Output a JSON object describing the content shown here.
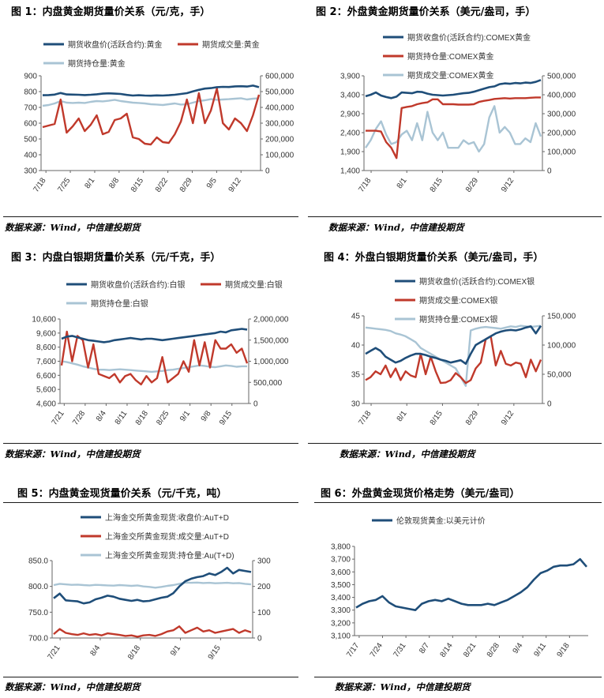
{
  "source_text": "数据来源：Wind，中信建投期货",
  "colors": {
    "price": "#1f4e79",
    "volume": "#c0392b",
    "oi": "#a9c4d4",
    "axis": "#666666"
  },
  "chart_data": [
    {
      "id": "c1",
      "type": "line",
      "title": "图 1：内盘黄金期货量价关系（元/克，手）",
      "x_ticks": [
        "7/18",
        "7/25",
        "8/1",
        "8/8",
        "8/15",
        "8/22",
        "8/29",
        "9/5",
        "9/12"
      ],
      "ylim_left": [
        300,
        900
      ],
      "yticks_left": [
        300,
        400,
        500,
        600,
        700,
        800,
        900
      ],
      "ylim_right": [
        0,
        600000
      ],
      "yticks_right": [
        0,
        100000,
        200000,
        300000,
        400000,
        500000,
        600000
      ],
      "series": [
        {
          "name": "期货收盘价(活跃合约):黄金",
          "axis": "left",
          "color": "#1f4e79",
          "values": [
            777,
            778,
            781,
            791,
            782,
            781,
            780,
            778,
            780,
            783,
            787,
            789,
            787,
            785,
            779,
            775,
            777,
            775,
            774,
            776,
            775,
            777,
            780,
            785,
            790,
            801,
            811,
            819,
            822,
            828,
            830,
            829,
            833,
            834,
            832,
            838,
            828
          ]
        },
        {
          "name": "期货成交量:黄金",
          "axis": "right",
          "color": "#c0392b",
          "values": [
            275000,
            285000,
            295000,
            450000,
            240000,
            280000,
            330000,
            250000,
            290000,
            350000,
            230000,
            245000,
            320000,
            330000,
            360000,
            210000,
            200000,
            170000,
            165000,
            210000,
            180000,
            175000,
            230000,
            310000,
            450000,
            300000,
            490000,
            300000,
            380000,
            520000,
            300000,
            260000,
            330000,
            300000,
            250000,
            350000,
            480000
          ]
        },
        {
          "name": "期货持仓量:黄金",
          "axis": "right",
          "color": "#a9c4d4",
          "values": [
            410000,
            415000,
            425000,
            440000,
            430000,
            428000,
            430000,
            428000,
            435000,
            440000,
            438000,
            442000,
            448000,
            440000,
            435000,
            430000,
            428000,
            425000,
            420000,
            418000,
            415000,
            420000,
            425000,
            418000,
            420000,
            430000,
            440000,
            445000,
            452000,
            448000,
            450000,
            452000,
            455000,
            458000,
            450000,
            455000,
            458000
          ]
        }
      ]
    },
    {
      "id": "c2",
      "type": "line",
      "title": "图 2：外盘黄金期货量价关系（美元/盎司，手）",
      "x_ticks": [
        "7/18",
        "8/1",
        "8/15",
        "8/29",
        "9/12"
      ],
      "ylim_left": [
        1400,
        3900
      ],
      "yticks_left": [
        1400,
        1900,
        2400,
        2900,
        3400,
        3900
      ],
      "ylim_right": [
        0,
        500000
      ],
      "yticks_right": [
        0,
        100000,
        200000,
        300000,
        400000,
        500000
      ],
      "series": [
        {
          "name": "期货收盘价(活跃合约):COMEX黄金",
          "axis": "left",
          "color": "#1f4e79",
          "values": [
            3360,
            3400,
            3460,
            3380,
            3340,
            3310,
            3350,
            3460,
            3450,
            3440,
            3480,
            3470,
            3430,
            3400,
            3390,
            3380,
            3390,
            3400,
            3420,
            3440,
            3450,
            3480,
            3520,
            3560,
            3600,
            3620,
            3680,
            3700,
            3690,
            3710,
            3700,
            3720,
            3710,
            3740,
            3790
          ]
        },
        {
          "name": "期货持仓量:COMEX黄金",
          "axis": "left",
          "color": "#c0392b",
          "values": [
            2450,
            2450,
            2450,
            2430,
            2150,
            2000,
            1730,
            3050,
            3080,
            3100,
            3150,
            3180,
            3200,
            3280,
            3280,
            3150,
            3150,
            3150,
            3140,
            3140,
            3140,
            3150,
            3210,
            3240,
            3260,
            3290,
            3300,
            3310,
            3300,
            3310,
            3310,
            3310,
            3320,
            3330,
            3330
          ]
        },
        {
          "name": "期货成交量:COMEX黄金",
          "axis": "right",
          "color": "#a9c4d4",
          "values": [
            120000,
            160000,
            220000,
            260000,
            190000,
            140000,
            150000,
            190000,
            210000,
            160000,
            250000,
            160000,
            310000,
            200000,
            160000,
            200000,
            120000,
            120000,
            120000,
            160000,
            140000,
            150000,
            100000,
            140000,
            280000,
            340000,
            200000,
            230000,
            200000,
            140000,
            140000,
            170000,
            150000,
            250000,
            180000
          ]
        }
      ]
    },
    {
      "id": "c3",
      "type": "line",
      "title": "图 3：内盘白银期货量价关系（元/千克，手）",
      "x_ticks": [
        "7/21",
        "7/28",
        "8/4",
        "8/11",
        "8/18",
        "8/25",
        "9/1",
        "9/8",
        "9/15"
      ],
      "ylim_left": [
        4600,
        10600
      ],
      "yticks_left": [
        4600,
        5600,
        6600,
        7600,
        8600,
        9600,
        10600
      ],
      "ylim_right": [
        0,
        2000000
      ],
      "yticks_right": [
        0,
        500000,
        1000000,
        1500000,
        2000000
      ],
      "series": [
        {
          "name": "期货收盘价(活跃合约):白银",
          "axis": "left",
          "color": "#1f4e79",
          "values": [
            9200,
            9350,
            9400,
            9300,
            9200,
            9100,
            9050,
            9000,
            8950,
            9000,
            9100,
            9150,
            9200,
            9250,
            9200,
            9150,
            9200,
            9200,
            9150,
            9100,
            9150,
            9200,
            9250,
            9300,
            9350,
            9400,
            9450,
            9500,
            9550,
            9600,
            9700,
            9650,
            9800,
            9850,
            9900,
            9850
          ]
        },
        {
          "name": "期货成交量:白银",
          "axis": "right",
          "color": "#c0392b",
          "values": [
            900000,
            1700000,
            1000000,
            1600000,
            1500000,
            850000,
            1400000,
            700000,
            650000,
            600000,
            700000,
            500000,
            650000,
            700000,
            550000,
            450000,
            650000,
            500000,
            600000,
            1100000,
            500000,
            600000,
            700000,
            1000000,
            750000,
            1500000,
            900000,
            1450000,
            850000,
            1500000,
            1300000,
            1300000,
            1400000,
            1200000,
            1300000,
            950000
          ]
        },
        {
          "name": "期货持仓量:白银",
          "axis": "right",
          "color": "#a9c4d4",
          "values": [
            1000000,
            980000,
            950000,
            920000,
            880000,
            850000,
            820000,
            800000,
            800000,
            790000,
            800000,
            810000,
            800000,
            790000,
            780000,
            770000,
            760000,
            750000,
            760000,
            770000,
            790000,
            800000,
            820000,
            840000,
            860000,
            880000,
            900000,
            890000,
            870000,
            860000,
            880000,
            900000,
            890000,
            870000,
            880000,
            880000
          ]
        }
      ]
    },
    {
      "id": "c4",
      "type": "line",
      "title": "图 4：外盘白银期货量价关系（美元/盎司，手）",
      "x_ticks": [
        "7/18",
        "8/1",
        "8/15",
        "8/29",
        "9/12"
      ],
      "ylim_left": [
        30,
        45
      ],
      "yticks_left": [
        30,
        35,
        40,
        45
      ],
      "ylim_right": [
        0,
        150000
      ],
      "yticks_right": [
        0,
        50000,
        100000,
        150000
      ],
      "series": [
        {
          "name": "期货收盘价(活跃合约):COMEX银",
          "axis": "left",
          "color": "#1f4e79",
          "values": [
            38.5,
            39,
            39.5,
            39,
            38,
            37.5,
            37,
            37.3,
            37.8,
            38.2,
            38.5,
            38.5,
            38.3,
            38.0,
            37.8,
            37.5,
            37.3,
            37.0,
            37.2,
            37.4,
            36.8,
            38.5,
            40.0,
            40.5,
            41.0,
            41.5,
            42.0,
            42.3,
            42.5,
            42.6,
            42.5,
            42.7,
            43.0,
            43.2,
            42.0,
            43.3
          ]
        },
        {
          "name": "期货成交量:COMEX银",
          "axis": "right",
          "color": "#c0392b",
          "values": [
            40000,
            45000,
            55000,
            50000,
            65000,
            45000,
            60000,
            40000,
            55000,
            48000,
            45000,
            85000,
            50000,
            80000,
            55000,
            35000,
            36000,
            40000,
            52000,
            45000,
            35000,
            40000,
            60000,
            70000,
            110000,
            115000,
            65000,
            90000,
            68000,
            65000,
            70000,
            68000,
            45000,
            75000,
            55000,
            75000
          ]
        },
        {
          "name": "期货持仓量:COMEX银",
          "axis": "right",
          "color": "#a9c4d4",
          "values": [
            130000,
            129000,
            128000,
            127000,
            126000,
            124000,
            120000,
            118000,
            115000,
            110000,
            105000,
            95000,
            90000,
            85000,
            80000,
            75000,
            70000,
            65000,
            60000,
            45000,
            30000,
            125000,
            128000,
            130000,
            131000,
            130000,
            129000,
            128000,
            130000,
            132000,
            131000,
            133000,
            132000,
            131000,
            132000,
            133000
          ]
        }
      ]
    },
    {
      "id": "c5",
      "type": "line",
      "title": "图 5：内盘黄金现货量价关系（元/千克，吨）",
      "x_ticks": [
        "7/21",
        "8/4",
        "8/18",
        "9/1",
        "9/15"
      ],
      "ylim_left": [
        700,
        850
      ],
      "yticks_left": [
        700.0,
        750.0,
        800.0,
        850.0
      ],
      "ylim_right": [
        0,
        300
      ],
      "yticks_right": [
        0,
        100,
        200,
        300
      ],
      "series": [
        {
          "name": "上海金交所黄金现货:收盘价:AuT+D",
          "axis": "left",
          "color": "#1f4e79",
          "values": [
            777,
            786,
            773,
            772,
            771,
            767,
            769,
            775,
            778,
            782,
            780,
            776,
            774,
            772,
            774,
            771,
            772,
            775,
            778,
            780,
            787,
            800,
            810,
            815,
            818,
            820,
            825,
            822,
            828,
            836,
            825,
            832,
            830,
            828
          ]
        },
        {
          "name": "上海金交所黄金现货:成交量:AuT+D",
          "axis": "right",
          "color": "#c0392b",
          "values": [
            15,
            35,
            20,
            15,
            12,
            18,
            12,
            15,
            10,
            18,
            15,
            12,
            8,
            10,
            5,
            10,
            12,
            8,
            15,
            25,
            30,
            45,
            20,
            30,
            40,
            25,
            30,
            20,
            25,
            30,
            35,
            20,
            30,
            22
          ]
        },
        {
          "name": "上海金交所黄金现货:持仓量:Au(T+D)",
          "axis": "right",
          "color": "#a9c4d4",
          "values": [
            205,
            210,
            208,
            206,
            207,
            205,
            204,
            206,
            205,
            204,
            203,
            205,
            204,
            202,
            204,
            200,
            198,
            195,
            198,
            202,
            205,
            210,
            215,
            214,
            215,
            213,
            214,
            212,
            213,
            214,
            212,
            213,
            210,
            208
          ]
        }
      ]
    },
    {
      "id": "c6",
      "type": "line",
      "title": "图 6：外盘黄金现货价格走势（美元/盎司）",
      "x_ticks": [
        "7/17",
        "7/24",
        "7/31",
        "8/7",
        "8/14",
        "8/21",
        "8/28",
        "9/4",
        "9/11",
        "9/18"
      ],
      "ylim_left": [
        3100,
        3800
      ],
      "yticks_left": [
        3100,
        3200,
        3300,
        3400,
        3500,
        3600,
        3700,
        3800
      ],
      "series": [
        {
          "name": "伦敦现货黄金:以美元计价",
          "axis": "left",
          "color": "#1f4e79",
          "values": [
            3320,
            3350,
            3370,
            3380,
            3410,
            3360,
            3330,
            3320,
            3310,
            3300,
            3350,
            3370,
            3380,
            3370,
            3390,
            3370,
            3350,
            3340,
            3340,
            3340,
            3350,
            3340,
            3360,
            3380,
            3410,
            3440,
            3480,
            3540,
            3590,
            3610,
            3640,
            3650,
            3650,
            3660,
            3700,
            3640
          ]
        }
      ]
    }
  ]
}
